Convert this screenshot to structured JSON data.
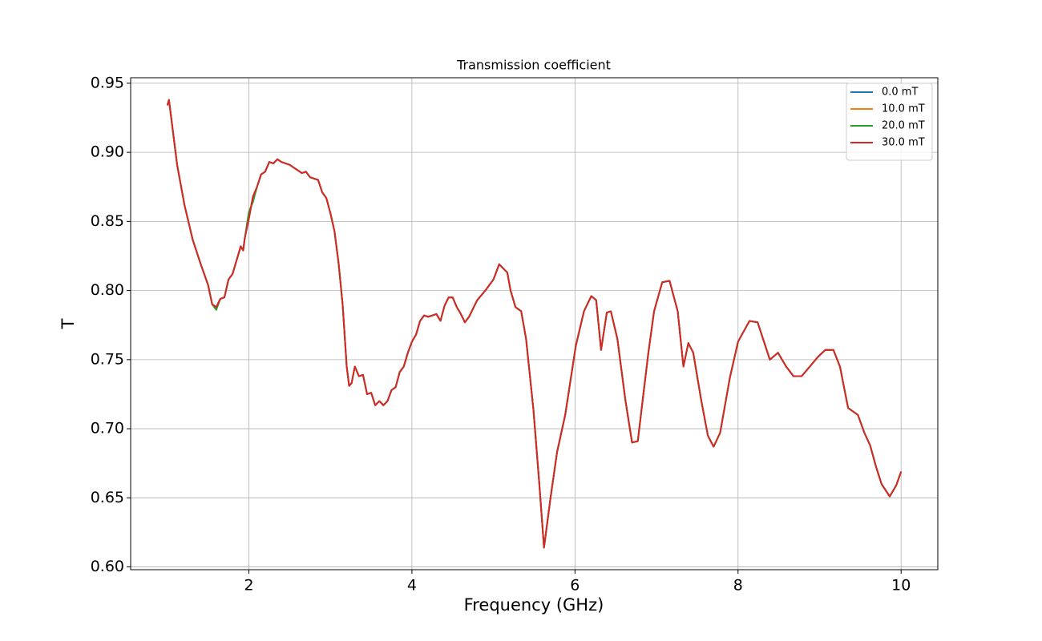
{
  "chart_data": {
    "type": "line",
    "title": "Transmission coefficient",
    "x_label": "Frequency (GHz)",
    "y_label": "T",
    "xlim": [
      0.55,
      10.45
    ],
    "ylim": [
      0.598,
      0.954
    ],
    "xticks": [
      2,
      4,
      6,
      8,
      10
    ],
    "yticks": [
      {
        "value": 0.6,
        "label": "0.60"
      },
      0.65,
      {
        "value": 0.7,
        "label": "0.70"
      },
      0.75,
      {
        "value": 0.8,
        "label": "0.80"
      },
      0.85,
      {
        "value": 0.9,
        "label": "0.90"
      },
      0.95
    ],
    "grid": true,
    "legend": "upper right",
    "x": [
      1.0,
      1.02,
      1.12,
      1.21,
      1.31,
      1.41,
      1.5,
      1.55,
      1.6,
      1.65,
      1.7,
      1.75,
      1.8,
      1.85,
      1.9,
      1.93,
      1.95,
      2.0,
      2.05,
      2.1,
      2.15,
      2.2,
      2.25,
      2.3,
      2.35,
      2.4,
      2.5,
      2.6,
      2.65,
      2.7,
      2.75,
      2.85,
      2.9,
      2.95,
      3.0,
      3.05,
      3.1,
      3.15,
      3.2,
      3.23,
      3.26,
      3.3,
      3.35,
      3.4,
      3.45,
      3.5,
      3.55,
      3.6,
      3.65,
      3.7,
      3.75,
      3.8,
      3.85,
      3.9,
      3.95,
      4.0,
      4.05,
      4.1,
      4.15,
      4.2,
      4.25,
      4.3,
      4.35,
      4.4,
      4.45,
      4.5,
      4.55,
      4.6,
      4.65,
      4.7,
      4.8,
      4.9,
      5.0,
      5.07,
      5.17,
      5.21,
      5.27,
      5.34,
      5.4,
      5.49,
      5.56,
      5.62,
      5.7,
      5.78,
      5.88,
      6.01,
      6.11,
      6.2,
      6.26,
      6.32,
      6.39,
      6.44,
      6.52,
      6.62,
      6.7,
      6.77,
      6.9,
      6.97,
      7.07,
      7.16,
      7.26,
      7.33,
      7.39,
      7.45,
      7.55,
      7.63,
      7.7,
      7.78,
      7.9,
      8.0,
      8.14,
      8.24,
      8.39,
      8.49,
      8.59,
      8.68,
      8.78,
      8.88,
      8.98,
      9.07,
      9.17,
      9.25,
      9.35,
      9.47,
      9.55,
      9.62,
      9.69,
      9.76,
      9.86,
      9.94,
      10.0
    ],
    "series": [
      {
        "name": "0.0 mT",
        "color": "#1f77b4",
        "values": [
          0.934,
          0.938,
          0.891,
          0.862,
          0.837,
          0.819,
          0.804,
          0.79,
          0.788,
          0.794,
          0.795,
          0.808,
          0.812,
          0.822,
          0.832,
          0.829,
          0.838,
          0.852,
          0.868,
          0.875,
          0.884,
          0.886,
          0.893,
          0.892,
          0.895,
          0.893,
          0.891,
          0.887,
          0.885,
          0.886,
          0.882,
          0.88,
          0.871,
          0.867,
          0.856,
          0.843,
          0.82,
          0.79,
          0.745,
          0.731,
          0.733,
          0.745,
          0.738,
          0.739,
          0.725,
          0.726,
          0.717,
          0.72,
          0.717,
          0.72,
          0.728,
          0.73,
          0.741,
          0.745,
          0.755,
          0.763,
          0.768,
          0.778,
          0.782,
          0.781,
          0.782,
          0.783,
          0.778,
          0.789,
          0.795,
          0.795,
          0.788,
          0.783,
          0.777,
          0.781,
          0.793,
          0.8,
          0.808,
          0.819,
          0.813,
          0.8,
          0.788,
          0.785,
          0.765,
          0.714,
          0.662,
          0.614,
          0.65,
          0.683,
          0.71,
          0.76,
          0.785,
          0.796,
          0.793,
          0.757,
          0.784,
          0.785,
          0.765,
          0.72,
          0.69,
          0.691,
          0.755,
          0.785,
          0.806,
          0.807,
          0.785,
          0.745,
          0.762,
          0.755,
          0.72,
          0.695,
          0.687,
          0.697,
          0.737,
          0.763,
          0.778,
          0.777,
          0.75,
          0.755,
          0.745,
          0.738,
          0.738,
          0.745,
          0.752,
          0.757,
          0.757,
          0.745,
          0.715,
          0.71,
          0.697,
          0.688,
          0.673,
          0.66,
          0.651,
          0.659,
          0.669
        ]
      },
      {
        "name": "10.0 mT",
        "color": "#ff7f0e",
        "values": [
          0.934,
          0.938,
          0.891,
          0.862,
          0.837,
          0.819,
          0.804,
          0.79,
          0.788,
          0.794,
          0.795,
          0.808,
          0.812,
          0.822,
          0.832,
          0.829,
          0.838,
          0.852,
          0.868,
          0.875,
          0.884,
          0.886,
          0.893,
          0.892,
          0.895,
          0.893,
          0.891,
          0.887,
          0.885,
          0.886,
          0.882,
          0.88,
          0.871,
          0.867,
          0.856,
          0.843,
          0.82,
          0.79,
          0.745,
          0.731,
          0.733,
          0.745,
          0.738,
          0.739,
          0.725,
          0.726,
          0.717,
          0.72,
          0.717,
          0.72,
          0.728,
          0.73,
          0.741,
          0.745,
          0.755,
          0.763,
          0.768,
          0.778,
          0.782,
          0.781,
          0.782,
          0.783,
          0.778,
          0.789,
          0.795,
          0.795,
          0.788,
          0.783,
          0.777,
          0.781,
          0.793,
          0.8,
          0.808,
          0.819,
          0.813,
          0.8,
          0.788,
          0.785,
          0.765,
          0.714,
          0.662,
          0.614,
          0.65,
          0.683,
          0.71,
          0.76,
          0.785,
          0.796,
          0.793,
          0.757,
          0.784,
          0.785,
          0.765,
          0.72,
          0.69,
          0.691,
          0.755,
          0.785,
          0.806,
          0.807,
          0.785,
          0.745,
          0.762,
          0.755,
          0.72,
          0.695,
          0.687,
          0.697,
          0.737,
          0.763,
          0.778,
          0.777,
          0.75,
          0.755,
          0.745,
          0.738,
          0.738,
          0.745,
          0.752,
          0.757,
          0.757,
          0.745,
          0.715,
          0.71,
          0.697,
          0.688,
          0.673,
          0.66,
          0.651,
          0.659,
          0.669
        ]
      },
      {
        "name": "20.0 mT",
        "color": "#2ca02c",
        "values": [
          0.934,
          0.938,
          0.891,
          0.862,
          0.837,
          0.819,
          0.804,
          0.79,
          0.786,
          0.794,
          0.795,
          0.808,
          0.812,
          0.822,
          0.832,
          0.829,
          0.838,
          0.857,
          0.864,
          0.875,
          0.884,
          0.886,
          0.893,
          0.892,
          0.895,
          0.893,
          0.891,
          0.887,
          0.885,
          0.886,
          0.882,
          0.88,
          0.871,
          0.867,
          0.856,
          0.843,
          0.82,
          0.79,
          0.745,
          0.731,
          0.733,
          0.745,
          0.738,
          0.739,
          0.725,
          0.726,
          0.717,
          0.72,
          0.717,
          0.72,
          0.728,
          0.73,
          0.741,
          0.745,
          0.755,
          0.763,
          0.768,
          0.778,
          0.782,
          0.781,
          0.782,
          0.783,
          0.778,
          0.789,
          0.795,
          0.795,
          0.788,
          0.783,
          0.777,
          0.781,
          0.793,
          0.8,
          0.808,
          0.819,
          0.813,
          0.8,
          0.788,
          0.785,
          0.765,
          0.714,
          0.662,
          0.614,
          0.65,
          0.683,
          0.71,
          0.76,
          0.785,
          0.796,
          0.793,
          0.757,
          0.784,
          0.785,
          0.765,
          0.72,
          0.69,
          0.691,
          0.755,
          0.785,
          0.806,
          0.807,
          0.785,
          0.745,
          0.762,
          0.755,
          0.72,
          0.695,
          0.687,
          0.697,
          0.737,
          0.763,
          0.778,
          0.777,
          0.75,
          0.755,
          0.745,
          0.738,
          0.738,
          0.745,
          0.752,
          0.757,
          0.757,
          0.745,
          0.715,
          0.71,
          0.697,
          0.688,
          0.673,
          0.66,
          0.651,
          0.659,
          0.669
        ]
      },
      {
        "name": "30.0 mT",
        "color": "#d62728",
        "values": [
          0.934,
          0.938,
          0.891,
          0.862,
          0.837,
          0.819,
          0.804,
          0.79,
          0.788,
          0.794,
          0.795,
          0.808,
          0.812,
          0.822,
          0.832,
          0.829,
          0.838,
          0.852,
          0.868,
          0.875,
          0.884,
          0.886,
          0.893,
          0.892,
          0.895,
          0.893,
          0.891,
          0.887,
          0.885,
          0.886,
          0.882,
          0.88,
          0.871,
          0.867,
          0.856,
          0.843,
          0.82,
          0.79,
          0.745,
          0.731,
          0.733,
          0.745,
          0.738,
          0.739,
          0.725,
          0.726,
          0.717,
          0.72,
          0.717,
          0.72,
          0.728,
          0.73,
          0.741,
          0.745,
          0.755,
          0.763,
          0.768,
          0.778,
          0.782,
          0.781,
          0.782,
          0.783,
          0.778,
          0.789,
          0.795,
          0.795,
          0.788,
          0.783,
          0.777,
          0.781,
          0.793,
          0.8,
          0.808,
          0.819,
          0.813,
          0.8,
          0.788,
          0.785,
          0.765,
          0.714,
          0.662,
          0.614,
          0.65,
          0.683,
          0.71,
          0.76,
          0.785,
          0.796,
          0.793,
          0.757,
          0.784,
          0.785,
          0.765,
          0.72,
          0.69,
          0.691,
          0.755,
          0.785,
          0.806,
          0.807,
          0.785,
          0.745,
          0.762,
          0.755,
          0.72,
          0.695,
          0.687,
          0.697,
          0.737,
          0.763,
          0.778,
          0.777,
          0.75,
          0.755,
          0.745,
          0.738,
          0.738,
          0.745,
          0.752,
          0.757,
          0.757,
          0.745,
          0.715,
          0.71,
          0.697,
          0.688,
          0.673,
          0.66,
          0.651,
          0.659,
          0.669
        ]
      }
    ]
  }
}
